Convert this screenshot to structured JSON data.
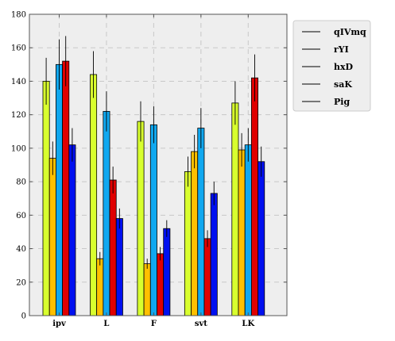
{
  "chart_data": {
    "type": "bar",
    "title": "",
    "xlabel": "",
    "ylabel": "",
    "categories": [
      "ipv",
      "L",
      "F",
      "svt",
      "LK"
    ],
    "ylim": [
      0,
      180
    ],
    "yticks": [
      0,
      20,
      40,
      60,
      80,
      100,
      120,
      140,
      160,
      180
    ],
    "grid": true,
    "legend_position": "top-right",
    "series": [
      {
        "name": "qIVmq",
        "color": "#d8ff2e",
        "values": [
          140,
          144,
          116,
          86,
          127
        ],
        "errors": [
          14,
          14,
          12,
          9,
          13
        ]
      },
      {
        "name": "rYI",
        "color": "#ffc000",
        "values": [
          94,
          34,
          31,
          98,
          99
        ],
        "errors": [
          10,
          4,
          3,
          10,
          10
        ]
      },
      {
        "name": "hxD",
        "color": "#10a8f0",
        "values": [
          150,
          122,
          114,
          112,
          102
        ],
        "errors": [
          15,
          12,
          11,
          12,
          10
        ]
      },
      {
        "name": "saK",
        "color": "#e00000",
        "values": [
          152,
          81,
          37,
          46,
          142
        ],
        "errors": [
          15,
          8,
          4,
          5,
          14
        ]
      },
      {
        "name": "Pig",
        "color": "#0010f0",
        "values": [
          102,
          58,
          52,
          73,
          92
        ],
        "errors": [
          10,
          6,
          5,
          7,
          9
        ]
      }
    ]
  }
}
